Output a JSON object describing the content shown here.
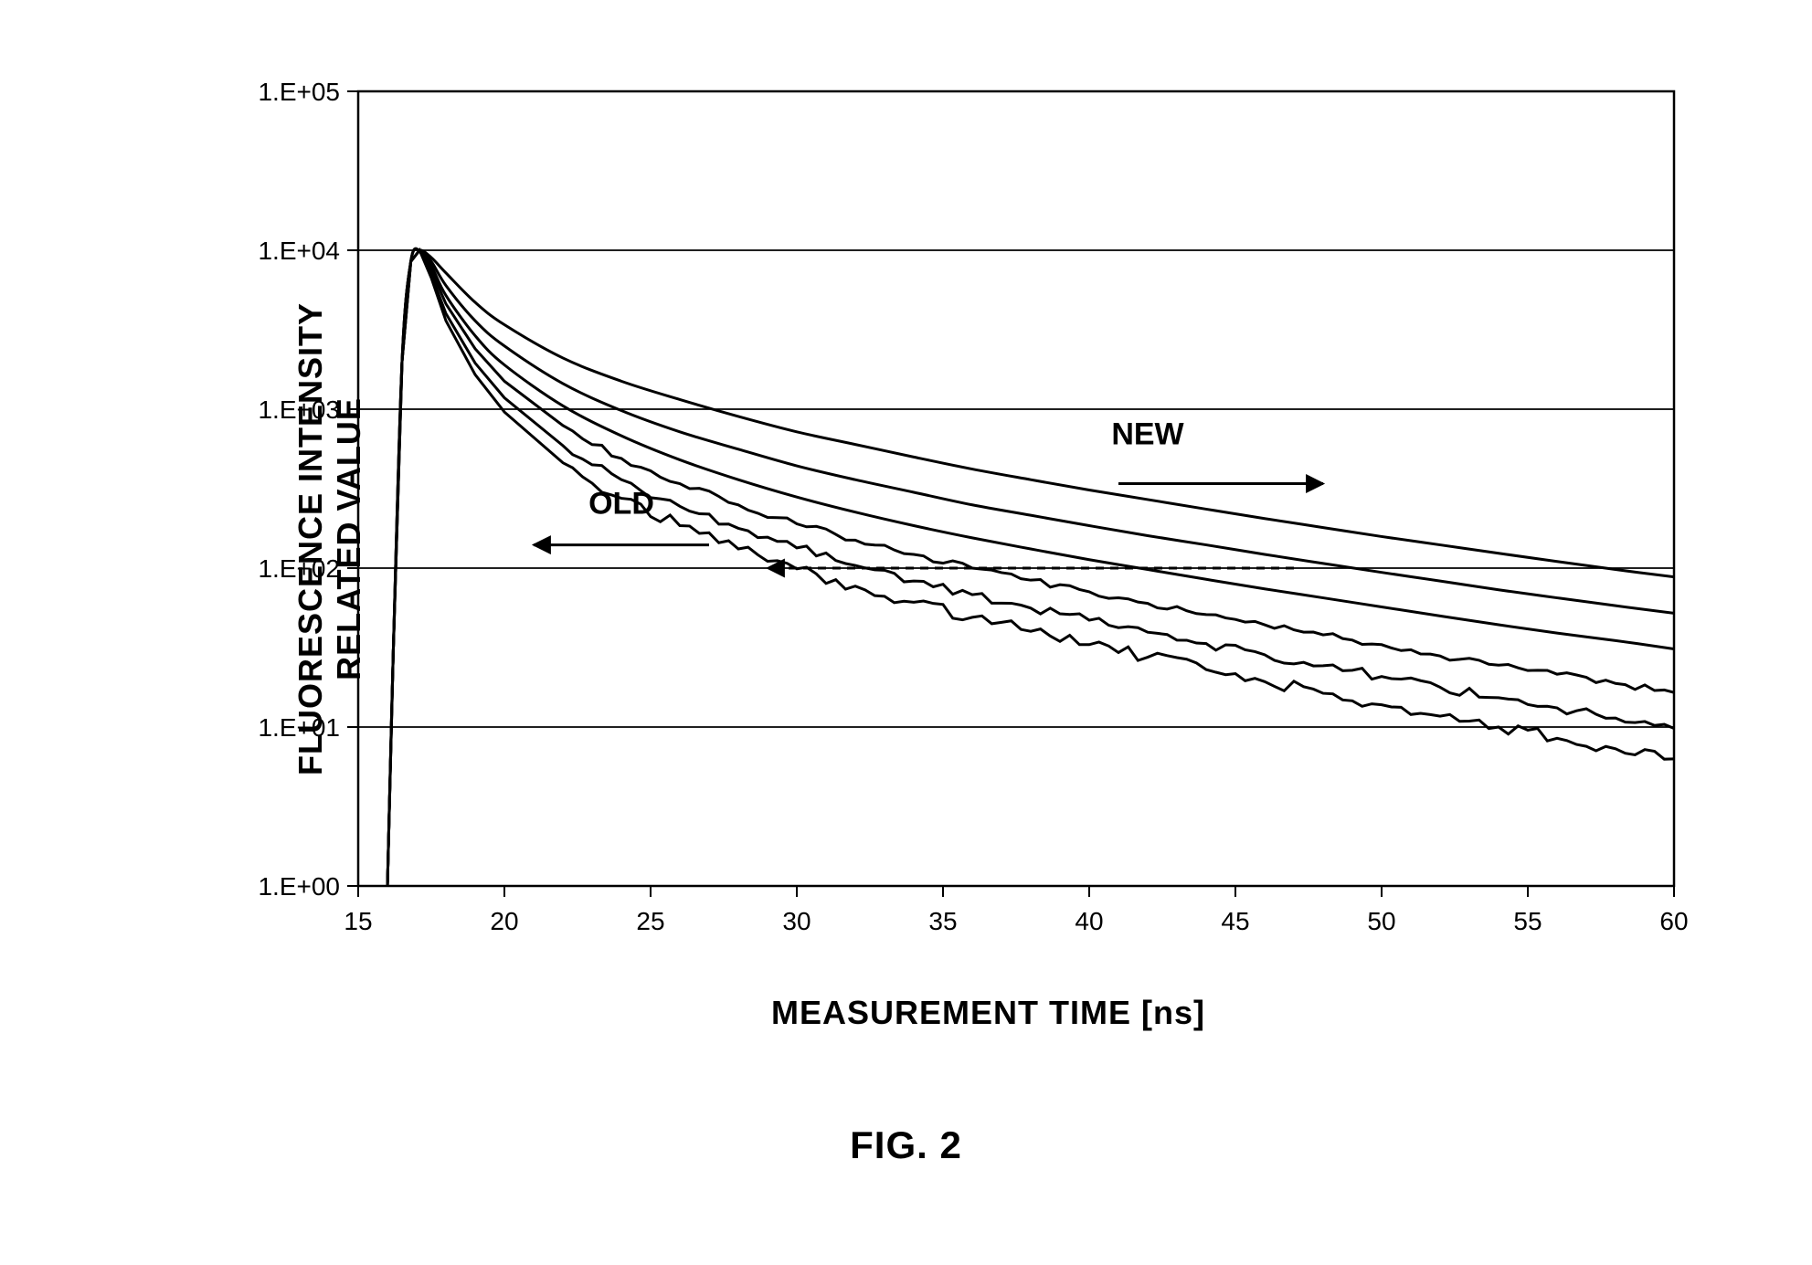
{
  "chart": {
    "type": "line-log",
    "title": "",
    "figure_label": "FIG. 2",
    "xlabel": "MEASUREMENT TIME  [ns]",
    "ylabel": "FLUORESCENCE INTENSITY\nRELATED VALUE",
    "x_range": [
      15,
      60
    ],
    "y_range_log": [
      1,
      100000
    ],
    "x_ticks": [
      15,
      20,
      25,
      30,
      35,
      40,
      45,
      50,
      55,
      60
    ],
    "y_ticks_log": [
      1,
      10,
      100,
      1000,
      10000,
      100000
    ],
    "y_tick_labels": [
      "1.E+00",
      "1.E+01",
      "1.E+02",
      "1.E+03",
      "1.E+04",
      "1.E+05"
    ],
    "background_color": "#ffffff",
    "grid_color": "#000000",
    "axis_color": "#000000",
    "line_color": "#000000",
    "line_width": 3.0,
    "border_width": 2.5,
    "tick_font_size": 28,
    "label_font_size": 36,
    "caption_font_size": 42,
    "annotations": {
      "old": {
        "text": "OLD",
        "x": 24,
        "y_log": 220,
        "arrow_from_x": 27,
        "arrow_to_x": 21,
        "arrow_y_log": 140
      },
      "new": {
        "text": "NEW",
        "x": 42,
        "y_log": 600,
        "arrow_from_x": 41,
        "arrow_to_x": 48,
        "arrow_y_log": 340
      }
    },
    "dashed_arrow": {
      "from_x": 47,
      "from_y_log": 100,
      "to_x": 29,
      "to_y_log": 100
    },
    "series": [
      {
        "name": "curve_new_1",
        "noise": 0.0,
        "points": [
          [
            16.0,
            1
          ],
          [
            16.2,
            30
          ],
          [
            16.5,
            2000
          ],
          [
            16.8,
            8500
          ],
          [
            17.1,
            10000
          ],
          [
            17.5,
            9000
          ],
          [
            18,
            7200
          ],
          [
            19,
            4700
          ],
          [
            20,
            3400
          ],
          [
            22,
            2100
          ],
          [
            24,
            1500
          ],
          [
            26,
            1150
          ],
          [
            28,
            900
          ],
          [
            30,
            720
          ],
          [
            32,
            600
          ],
          [
            34,
            500
          ],
          [
            36,
            420
          ],
          [
            38,
            360
          ],
          [
            40,
            310
          ],
          [
            42,
            270
          ],
          [
            44,
            235
          ],
          [
            46,
            205
          ],
          [
            48,
            180
          ],
          [
            50,
            158
          ],
          [
            52,
            140
          ],
          [
            54,
            124
          ],
          [
            56,
            110
          ],
          [
            58,
            98
          ],
          [
            60,
            88
          ]
        ]
      },
      {
        "name": "curve_new_2",
        "noise": 0.0,
        "points": [
          [
            16.0,
            1
          ],
          [
            16.2,
            30
          ],
          [
            16.5,
            2000
          ],
          [
            16.8,
            8500
          ],
          [
            17.1,
            10000
          ],
          [
            17.5,
            8500
          ],
          [
            18,
            6000
          ],
          [
            19,
            3600
          ],
          [
            20,
            2500
          ],
          [
            22,
            1450
          ],
          [
            24,
            980
          ],
          [
            26,
            720
          ],
          [
            28,
            560
          ],
          [
            30,
            440
          ],
          [
            32,
            360
          ],
          [
            34,
            300
          ],
          [
            36,
            250
          ],
          [
            38,
            215
          ],
          [
            40,
            185
          ],
          [
            42,
            160
          ],
          [
            44,
            140
          ],
          [
            46,
            122
          ],
          [
            48,
            107
          ],
          [
            50,
            94
          ],
          [
            52,
            83
          ],
          [
            54,
            73
          ],
          [
            56,
            65
          ],
          [
            58,
            58
          ],
          [
            60,
            52
          ]
        ]
      },
      {
        "name": "curve_mid",
        "noise": 0.0,
        "points": [
          [
            16.0,
            1
          ],
          [
            16.2,
            30
          ],
          [
            16.5,
            2000
          ],
          [
            16.8,
            8500
          ],
          [
            17.1,
            10000
          ],
          [
            17.5,
            8000
          ],
          [
            18,
            5200
          ],
          [
            19,
            2900
          ],
          [
            20,
            1900
          ],
          [
            22,
            1050
          ],
          [
            24,
            680
          ],
          [
            26,
            480
          ],
          [
            28,
            360
          ],
          [
            30,
            280
          ],
          [
            32,
            225
          ],
          [
            34,
            185
          ],
          [
            36,
            155
          ],
          [
            38,
            132
          ],
          [
            40,
            113
          ],
          [
            42,
            98
          ],
          [
            44,
            85
          ],
          [
            46,
            74
          ],
          [
            48,
            65
          ],
          [
            50,
            57
          ],
          [
            52,
            50
          ],
          [
            54,
            44
          ],
          [
            56,
            39
          ],
          [
            58,
            35
          ],
          [
            60,
            31
          ]
        ]
      },
      {
        "name": "curve_old_1",
        "noise": 0.04,
        "points": [
          [
            16.0,
            1
          ],
          [
            16.2,
            30
          ],
          [
            16.5,
            2000
          ],
          [
            16.8,
            8500
          ],
          [
            17.1,
            10000
          ],
          [
            17.5,
            7500
          ],
          [
            18,
            4600
          ],
          [
            19,
            2400
          ],
          [
            20,
            1500
          ],
          [
            22,
            790
          ],
          [
            24,
            490
          ],
          [
            26,
            340
          ],
          [
            28,
            250
          ],
          [
            30,
            190
          ],
          [
            32,
            150
          ],
          [
            34,
            122
          ],
          [
            36,
            100
          ],
          [
            38,
            84
          ],
          [
            40,
            71
          ],
          [
            42,
            60
          ],
          [
            44,
            51
          ],
          [
            46,
            44
          ],
          [
            48,
            38
          ],
          [
            50,
            33
          ],
          [
            52,
            28
          ],
          [
            54,
            24.5
          ],
          [
            56,
            21.5
          ],
          [
            58,
            18.8
          ],
          [
            60,
            16.5
          ]
        ]
      },
      {
        "name": "curve_old_2",
        "noise": 0.06,
        "points": [
          [
            16.0,
            1
          ],
          [
            16.2,
            30
          ],
          [
            16.5,
            2000
          ],
          [
            16.8,
            8500
          ],
          [
            17.1,
            10000
          ],
          [
            17.5,
            7000
          ],
          [
            18,
            4000
          ],
          [
            19,
            1950
          ],
          [
            20,
            1180
          ],
          [
            22,
            590
          ],
          [
            24,
            360
          ],
          [
            26,
            245
          ],
          [
            28,
            178
          ],
          [
            30,
            134
          ],
          [
            32,
            104
          ],
          [
            34,
            83
          ],
          [
            36,
            68
          ],
          [
            38,
            56
          ],
          [
            40,
            47
          ],
          [
            42,
            39.5
          ],
          [
            44,
            33.5
          ],
          [
            46,
            28.5
          ],
          [
            48,
            24.3
          ],
          [
            50,
            20.8
          ],
          [
            52,
            17.8
          ],
          [
            54,
            15.3
          ],
          [
            56,
            13.2
          ],
          [
            58,
            11.4
          ],
          [
            60,
            9.8
          ]
        ]
      },
      {
        "name": "curve_old_3",
        "noise": 0.08,
        "points": [
          [
            16.0,
            1
          ],
          [
            16.2,
            30
          ],
          [
            16.5,
            2000
          ],
          [
            16.8,
            8500
          ],
          [
            17.1,
            10000
          ],
          [
            17.5,
            6700
          ],
          [
            18,
            3600
          ],
          [
            19,
            1650
          ],
          [
            20,
            960
          ],
          [
            22,
            460
          ],
          [
            24,
            275
          ],
          [
            26,
            185
          ],
          [
            28,
            132
          ],
          [
            30,
            99
          ],
          [
            32,
            77
          ],
          [
            34,
            61
          ],
          [
            36,
            49
          ],
          [
            38,
            40
          ],
          [
            40,
            33
          ],
          [
            42,
            27.5
          ],
          [
            44,
            23
          ],
          [
            46,
            19.3
          ],
          [
            48,
            16.3
          ],
          [
            50,
            13.8
          ],
          [
            52,
            11.7
          ],
          [
            54,
            10
          ],
          [
            56,
            8.5
          ],
          [
            58,
            7.3
          ],
          [
            60,
            6.3
          ]
        ]
      }
    ]
  }
}
